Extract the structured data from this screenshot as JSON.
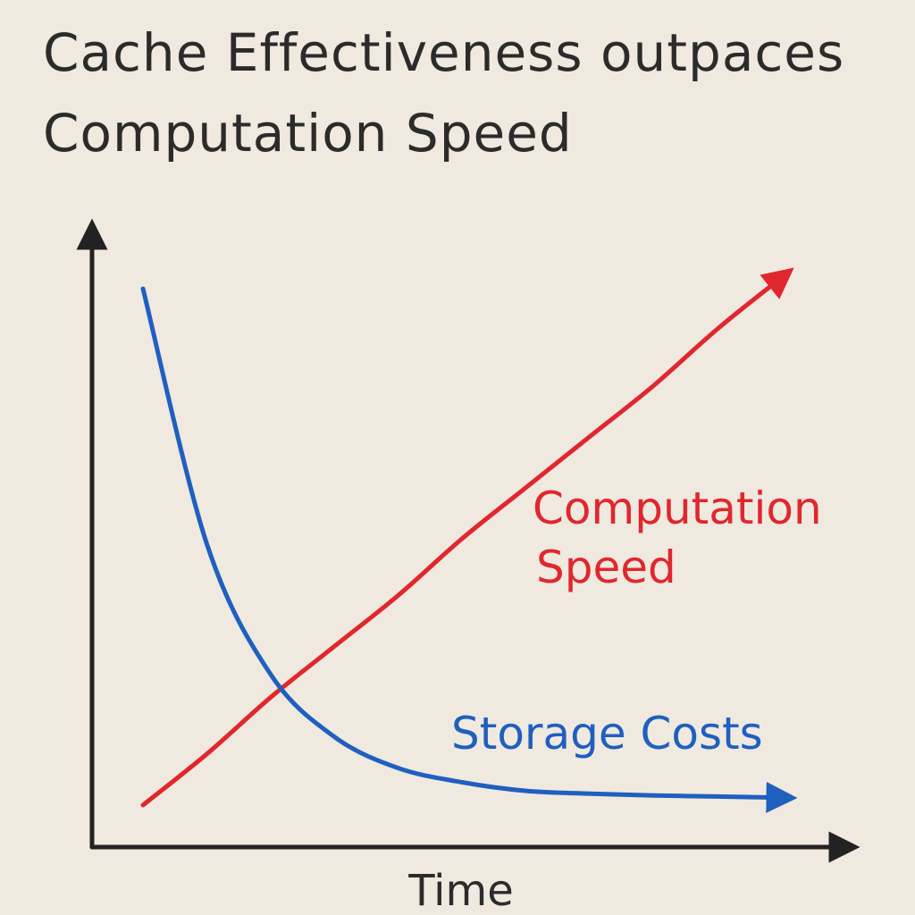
{
  "chart_data": {
    "type": "line",
    "title": "Cache Effectiveness outpaces Computation Speed",
    "title_lines": [
      "Cache Effectiveness outpaces",
      "Computation Speed"
    ],
    "xlabel": "Time",
    "ylabel": "",
    "x": [
      0,
      1,
      2,
      3,
      4,
      5,
      6,
      7,
      8,
      9,
      10
    ],
    "xlim": [
      0,
      10
    ],
    "ylim": [
      0,
      10
    ],
    "grid": false,
    "series": [
      {
        "name": "Computation Speed",
        "label_lines": [
          "Computation",
          "Speed"
        ],
        "color": "#e0272e",
        "values": [
          0.3,
          1.2,
          2.2,
          3.1,
          4.0,
          5.0,
          5.9,
          6.8,
          7.7,
          8.7,
          9.6
        ]
      },
      {
        "name": "Storage Costs",
        "label_lines": [
          "Storage Costs"
        ],
        "color": "#1f5fbf",
        "values": [
          9.4,
          4.9,
          2.6,
          1.5,
          0.95,
          0.7,
          0.55,
          0.5,
          0.47,
          0.45,
          0.43
        ]
      }
    ],
    "axis_color": "#222222",
    "text_color": "#2b2b2b"
  }
}
